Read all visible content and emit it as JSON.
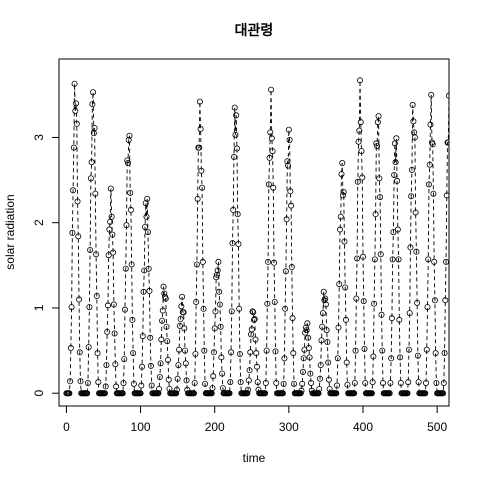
{
  "chart_data": {
    "type": "scatter",
    "title": "대관령",
    "xlabel": "time",
    "ylabel": "solar radiation",
    "xlim": [
      -10,
      516
    ],
    "ylim": [
      -0.15,
      3.92
    ],
    "x_ticks": [
      0,
      100,
      200,
      300,
      400,
      500
    ],
    "x_tick_labels": [
      "0",
      "100",
      "200",
      "300",
      "400",
      "500"
    ],
    "y_ticks": [
      0,
      1,
      2,
      3
    ],
    "y_tick_labels": [
      "0",
      "1",
      "2",
      "3"
    ],
    "grid": false,
    "legend": false,
    "marker": "open-circle",
    "line_style": "dashed",
    "color": "#000000",
    "series": [
      {
        "daily_peaks": [
          [
            12,
            3.78
          ],
          [
            36,
            3.68
          ],
          [
            60,
            2.4
          ],
          [
            84,
            3.2
          ],
          [
            108,
            2.4
          ],
          [
            132,
            1.3
          ],
          [
            156,
            1.15
          ],
          [
            180,
            3.48
          ],
          [
            204,
            1.6
          ],
          [
            228,
            3.52
          ],
          [
            252,
            1.02
          ],
          [
            276,
            3.56
          ],
          [
            300,
            3.22
          ],
          [
            324,
            0.85
          ],
          [
            348,
            1.24
          ],
          [
            372,
            2.8
          ],
          [
            396,
            3.68
          ],
          [
            420,
            3.43
          ],
          [
            444,
            3.15
          ],
          [
            468,
            3.53
          ],
          [
            492,
            3.55
          ],
          [
            516,
            3.55
          ]
        ]
      }
    ]
  }
}
